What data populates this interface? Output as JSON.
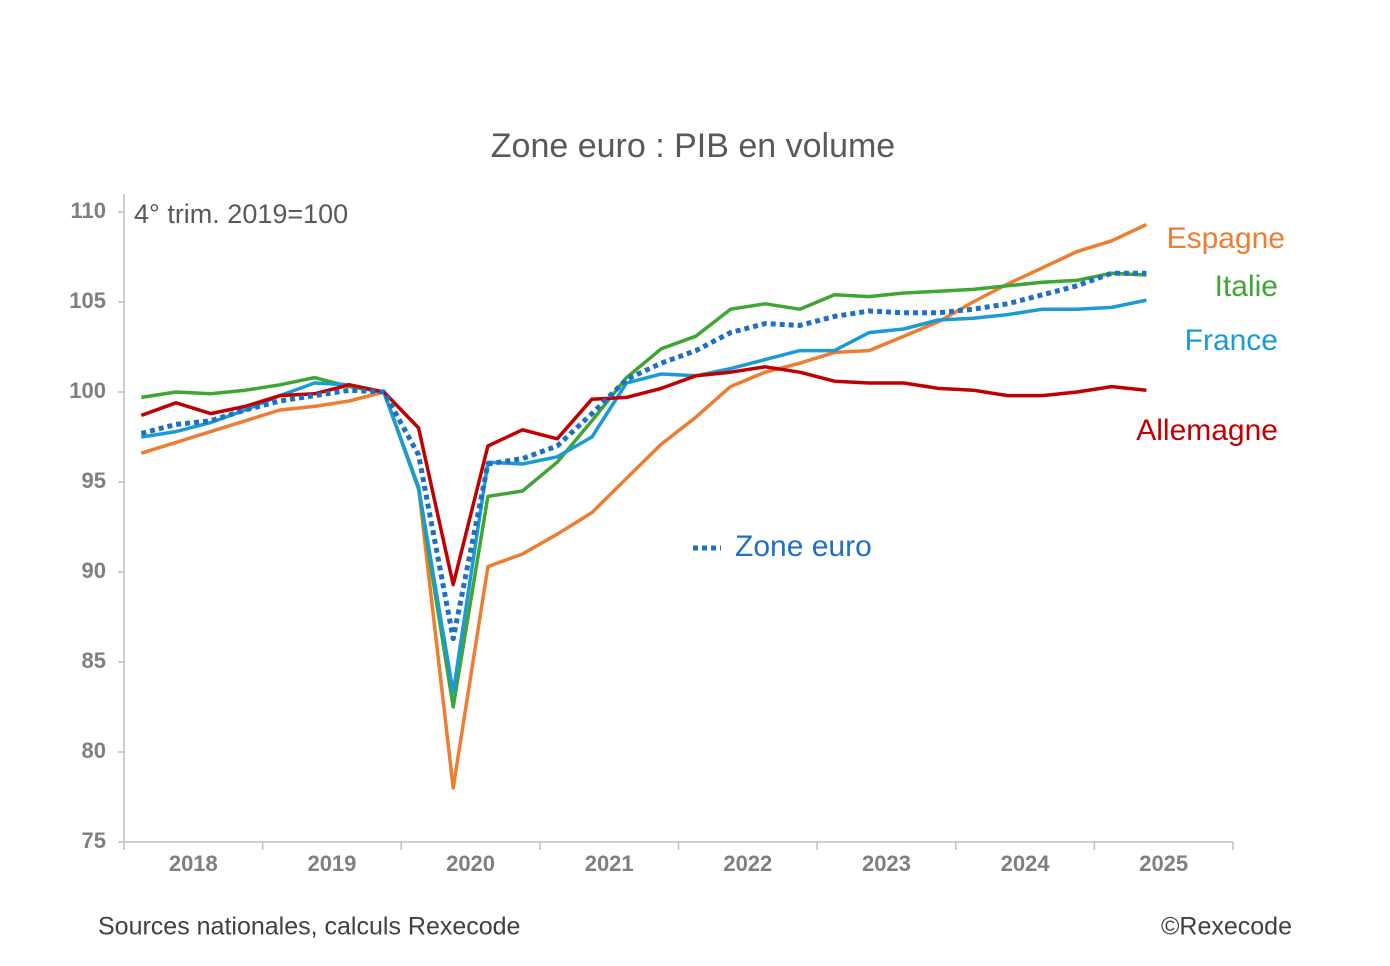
{
  "chart_data": {
    "type": "line",
    "title": "Zone euro : PIB en volume",
    "annotation": "4° trim. 2019=100",
    "source": "Sources nationales, calculs Rexecode",
    "credit": "©Rexecode",
    "categories": [
      null,
      null,
      null,
      null,
      null,
      null,
      null,
      null,
      null,
      null,
      null,
      null,
      null,
      null,
      null,
      null,
      null,
      null,
      null,
      null,
      null,
      null,
      null,
      null,
      null,
      null,
      null,
      null,
      null,
      null
    ],
    "year_labels": [
      "2018",
      "2019",
      "2020",
      "2021",
      "2022",
      "2023",
      "2024",
      "2025"
    ],
    "ylim": [
      75,
      110
    ],
    "yticks": [
      75,
      80,
      85,
      90,
      95,
      100,
      105,
      110
    ],
    "series": [
      {
        "name": "Espagne",
        "color": "#ed7d31",
        "dashed": false,
        "values": [
          96.6,
          97.2,
          97.8,
          98.4,
          99.0,
          99.2,
          99.5,
          100,
          94.7,
          78.0,
          90.3,
          91.0,
          92.1,
          93.3,
          95.2,
          97.1,
          98.6,
          100.3,
          101.1,
          101.6,
          102.2,
          102.3,
          103.1,
          103.9,
          105.0,
          106.0,
          106.9,
          107.8,
          108.4,
          109.3
        ]
      },
      {
        "name": "Italie",
        "color": "#3fa535",
        "dashed": false,
        "values": [
          99.7,
          100.0,
          99.9,
          100.1,
          100.4,
          100.8,
          100.3,
          100,
          94.6,
          82.5,
          94.2,
          94.5,
          96.1,
          98.4,
          100.8,
          102.4,
          103.1,
          104.6,
          104.9,
          104.6,
          105.4,
          105.3,
          105.5,
          105.6,
          105.7,
          105.9,
          106.1,
          106.2,
          106.6,
          106.5
        ]
      },
      {
        "name": "France",
        "color": "#1b9ad6",
        "dashed": false,
        "values": [
          97.5,
          97.8,
          98.3,
          99.0,
          99.8,
          100.5,
          100.4,
          100,
          94.7,
          83.3,
          96.1,
          96.0,
          96.4,
          97.5,
          100.5,
          101.0,
          100.9,
          101.3,
          101.8,
          102.3,
          102.3,
          103.3,
          103.5,
          104.0,
          104.1,
          104.3,
          104.6,
          104.6,
          104.7,
          105.1
        ]
      },
      {
        "name": "Allemagne",
        "color": "#c00000",
        "dashed": false,
        "values": [
          98.7,
          99.4,
          98.8,
          99.2,
          99.8,
          99.9,
          100.4,
          100,
          98.0,
          89.3,
          97.0,
          97.9,
          97.4,
          99.6,
          99.7,
          100.2,
          100.9,
          101.1,
          101.4,
          101.1,
          100.6,
          100.5,
          100.5,
          100.2,
          100.1,
          99.8,
          99.8,
          100.0,
          100.3,
          100.1
        ]
      },
      {
        "name": "Zone euro",
        "color": "#1f6fc4",
        "dashed": true,
        "values": [
          97.7,
          98.2,
          98.4,
          99.0,
          99.5,
          99.8,
          100.1,
          100,
          96.5,
          86.3,
          96.0,
          96.3,
          97.0,
          98.8,
          100.7,
          101.6,
          102.3,
          103.3,
          103.8,
          103.7,
          104.2,
          104.5,
          104.4,
          104.4,
          104.6,
          104.9,
          105.4,
          105.9,
          106.6,
          106.6
        ]
      }
    ]
  }
}
